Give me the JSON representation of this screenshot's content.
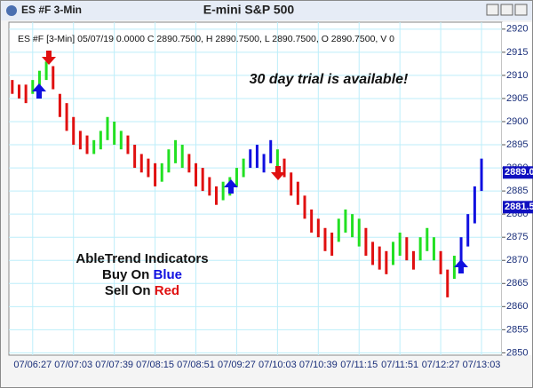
{
  "chart_data": {
    "type": "ohlc",
    "window_title": "ES #F 3-Min",
    "title": "E-mini S&P 500",
    "info_line": "ES #F [3-Min] 05/07/19  0.0000 C 2890.7500, H 2890.7500, L 2890.7500, O 2890.7500, V 0",
    "annotation": "30 day trial is available!",
    "promo": {
      "line1": "AbleTrend Indicators",
      "buy": "Buy On",
      "blue": "Blue",
      "sell": "Sell On",
      "red": "Red"
    },
    "ylim": [
      2849.5,
      2921.5
    ],
    "yticks": [
      2850,
      2855,
      2860,
      2865,
      2870,
      2875,
      2880,
      2885,
      2890,
      2895,
      2900,
      2905,
      2910,
      2915,
      2920
    ],
    "xlim": [
      -0.5,
      72
    ],
    "xticks": [
      {
        "value": 3,
        "label": "07/06:27"
      },
      {
        "value": 9,
        "label": "07/07:03"
      },
      {
        "value": 15,
        "label": "07/07:39"
      },
      {
        "value": 21,
        "label": "07/08:15"
      },
      {
        "value": 27,
        "label": "07/08:51"
      },
      {
        "value": 33,
        "label": "07/09:27"
      },
      {
        "value": 39,
        "label": "07/10:03"
      },
      {
        "value": 45,
        "label": "07/10:39"
      },
      {
        "value": 51,
        "label": "07/11:15"
      },
      {
        "value": 57,
        "label": "07/11:51"
      },
      {
        "value": 63,
        "label": "07/12:27"
      },
      {
        "value": 69,
        "label": "07/13:03"
      }
    ],
    "grid": true,
    "trend_colors": [
      "#e01010",
      "#22e022",
      "#1010e0"
    ],
    "high": [
      2909,
      2908,
      2908,
      2909,
      2911,
      2913,
      2912,
      2906,
      2904,
      2901,
      2898,
      2897,
      2896,
      2898,
      2901,
      2900,
      2898,
      2897,
      2895,
      2893,
      2892,
      2891,
      2891,
      2894,
      2896,
      2895,
      2893,
      2891,
      2890,
      2888,
      2886,
      2887,
      2888,
      2890,
      2892,
      2894,
      2895,
      2893,
      2896,
      2894,
      2892,
      2889,
      2887,
      2884,
      2881,
      2879,
      2877,
      2876,
      2879,
      2881,
      2880,
      2879,
      2877,
      2874,
      2873,
      2872,
      2874,
      2876,
      2875,
      2872,
      2875,
      2877,
      2875,
      2872,
      2868,
      2871,
      2875,
      2880,
      2886,
      2892
    ],
    "low": [
      2906,
      2905,
      2904,
      2906,
      2907,
      2909,
      2907,
      2901,
      2898,
      2895,
      2894,
      2893,
      2893,
      2894,
      2896,
      2895,
      2894,
      2893,
      2890,
      2889,
      2888,
      2886,
      2887,
      2889,
      2891,
      2890,
      2889,
      2886,
      2885,
      2884,
      2882,
      2883,
      2884,
      2886,
      2888,
      2890,
      2890,
      2889,
      2891,
      2890,
      2888,
      2884,
      2882,
      2879,
      2876,
      2875,
      2872,
      2871,
      2874,
      2876,
      2875,
      2873,
      2871,
      2869,
      2868,
      2867,
      2869,
      2871,
      2870,
      2868,
      2870,
      2872,
      2870,
      2867,
      2862,
      2866,
      2869,
      2873,
      2878,
      2885
    ],
    "trend": [
      0,
      0,
      0,
      1,
      1,
      1,
      0,
      0,
      0,
      0,
      0,
      0,
      1,
      1,
      1,
      1,
      1,
      0,
      0,
      0,
      0,
      0,
      1,
      1,
      1,
      1,
      0,
      0,
      0,
      0,
      0,
      1,
      1,
      1,
      1,
      2,
      2,
      2,
      2,
      1,
      0,
      0,
      0,
      0,
      0,
      0,
      0,
      0,
      1,
      1,
      1,
      1,
      0,
      0,
      0,
      0,
      1,
      1,
      0,
      0,
      1,
      1,
      1,
      0,
      0,
      1,
      2,
      2,
      2,
      2
    ],
    "price_markers": [
      {
        "value": 2889,
        "label": "2889.0"
      },
      {
        "value": 2881.5,
        "label": "2881.5"
      }
    ]
  }
}
